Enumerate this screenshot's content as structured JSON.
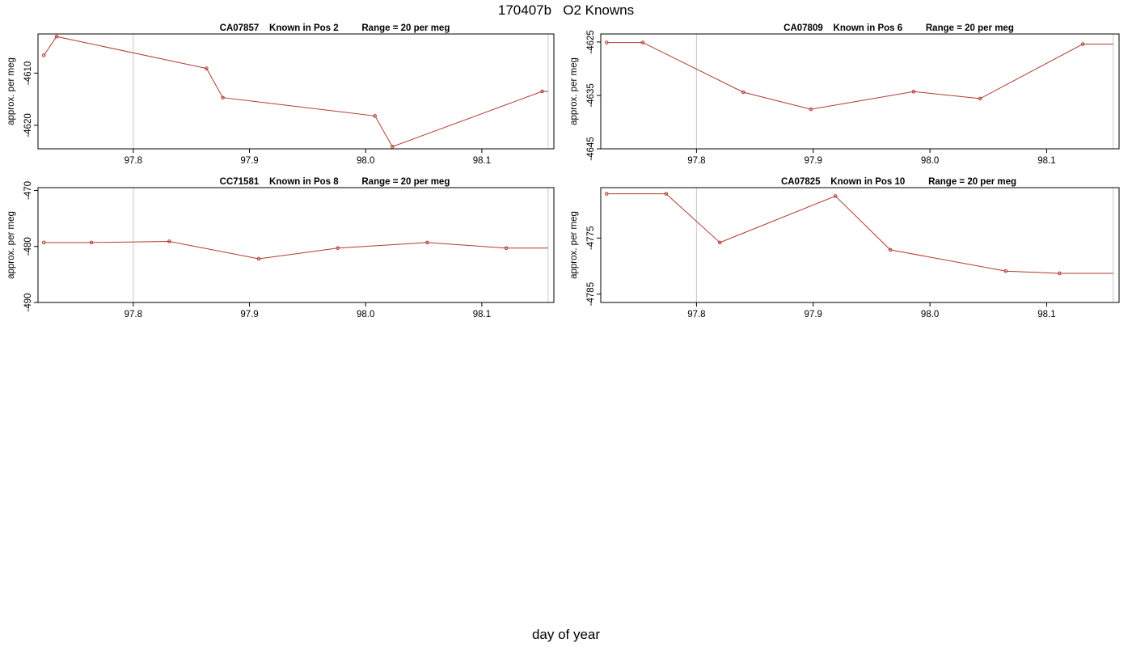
{
  "figure": {
    "title": "170407b   O2 Knowns",
    "xlabel": "day of year"
  },
  "colors": {
    "series": "#b03a2e",
    "vline": "#c8c8c8",
    "axis": "#000000"
  },
  "chart_data": [
    {
      "type": "line",
      "title": "CA07857    Known in Pos 2         Range = 20 per meg",
      "ylabel": "approx. per meg",
      "xlim": [
        97.718,
        98.162
      ],
      "ylim": [
        -4624.5,
        -4602.5
      ],
      "yticks": [
        -4610,
        -4620
      ],
      "xticks": [
        97.8,
        97.9,
        98.0,
        98.1
      ],
      "vlines": [
        97.8,
        98.157
      ],
      "x": [
        97.723,
        97.734,
        97.863,
        97.877,
        98.008,
        98.023,
        98.152
      ],
      "y": [
        -4606.6,
        -4603.0,
        -4609.1,
        -4614.7,
        -4618.2,
        -4624.1,
        -4613.5
      ],
      "tail_x": 98.157
    },
    {
      "type": "line",
      "title": "CA07809    Known in Pos 6         Range = 20 per meg",
      "ylabel": "approx. per meg",
      "xlim": [
        97.718,
        98.162
      ],
      "ylim": [
        -4645,
        -4623.5
      ],
      "yticks": [
        -4625,
        -4635,
        -4645
      ],
      "xticks": [
        97.8,
        97.9,
        98.0,
        98.1
      ],
      "vlines": [
        97.8,
        98.157
      ],
      "x": [
        97.723,
        97.754,
        97.84,
        97.898,
        97.986,
        98.043,
        98.131
      ],
      "y": [
        -4625.1,
        -4625.1,
        -4634.4,
        -4637.6,
        -4634.3,
        -4635.6,
        -4625.4
      ],
      "tail_x": 98.157
    },
    {
      "type": "line",
      "title": "CC71581    Known in Pos 8         Range = 20 per meg",
      "ylabel": "approx. per meg",
      "xlim": [
        97.718,
        98.162
      ],
      "ylim": [
        -490,
        -469.5
      ],
      "yticks": [
        -470,
        -480,
        -490
      ],
      "xticks": [
        97.8,
        97.9,
        98.0,
        98.1
      ],
      "vlines": [
        97.8,
        98.157
      ],
      "x": [
        97.723,
        97.764,
        97.831,
        97.908,
        97.976,
        98.053,
        98.121
      ],
      "y": [
        -479.3,
        -479.3,
        -479.1,
        -482.2,
        -480.3,
        -479.3,
        -480.3
      ],
      "tail_x": 98.157
    },
    {
      "type": "line",
      "title": "CA07825    Known in Pos 10         Range = 20 per meg",
      "ylabel": "approx. per meg",
      "xlim": [
        97.718,
        98.162
      ],
      "ylim": [
        -4786.5,
        -4766
      ],
      "yticks": [
        -4775,
        -4785
      ],
      "xticks": [
        97.8,
        97.9,
        98.0,
        98.1
      ],
      "vlines": [
        97.8,
        98.157
      ],
      "x": [
        97.723,
        97.774,
        97.82,
        97.919,
        97.966,
        98.065,
        98.111
      ],
      "y": [
        -4767.1,
        -4767.1,
        -4775.8,
        -4767.5,
        -4777.1,
        -4780.9,
        -4781.3
      ],
      "tail_x": 98.157
    }
  ]
}
